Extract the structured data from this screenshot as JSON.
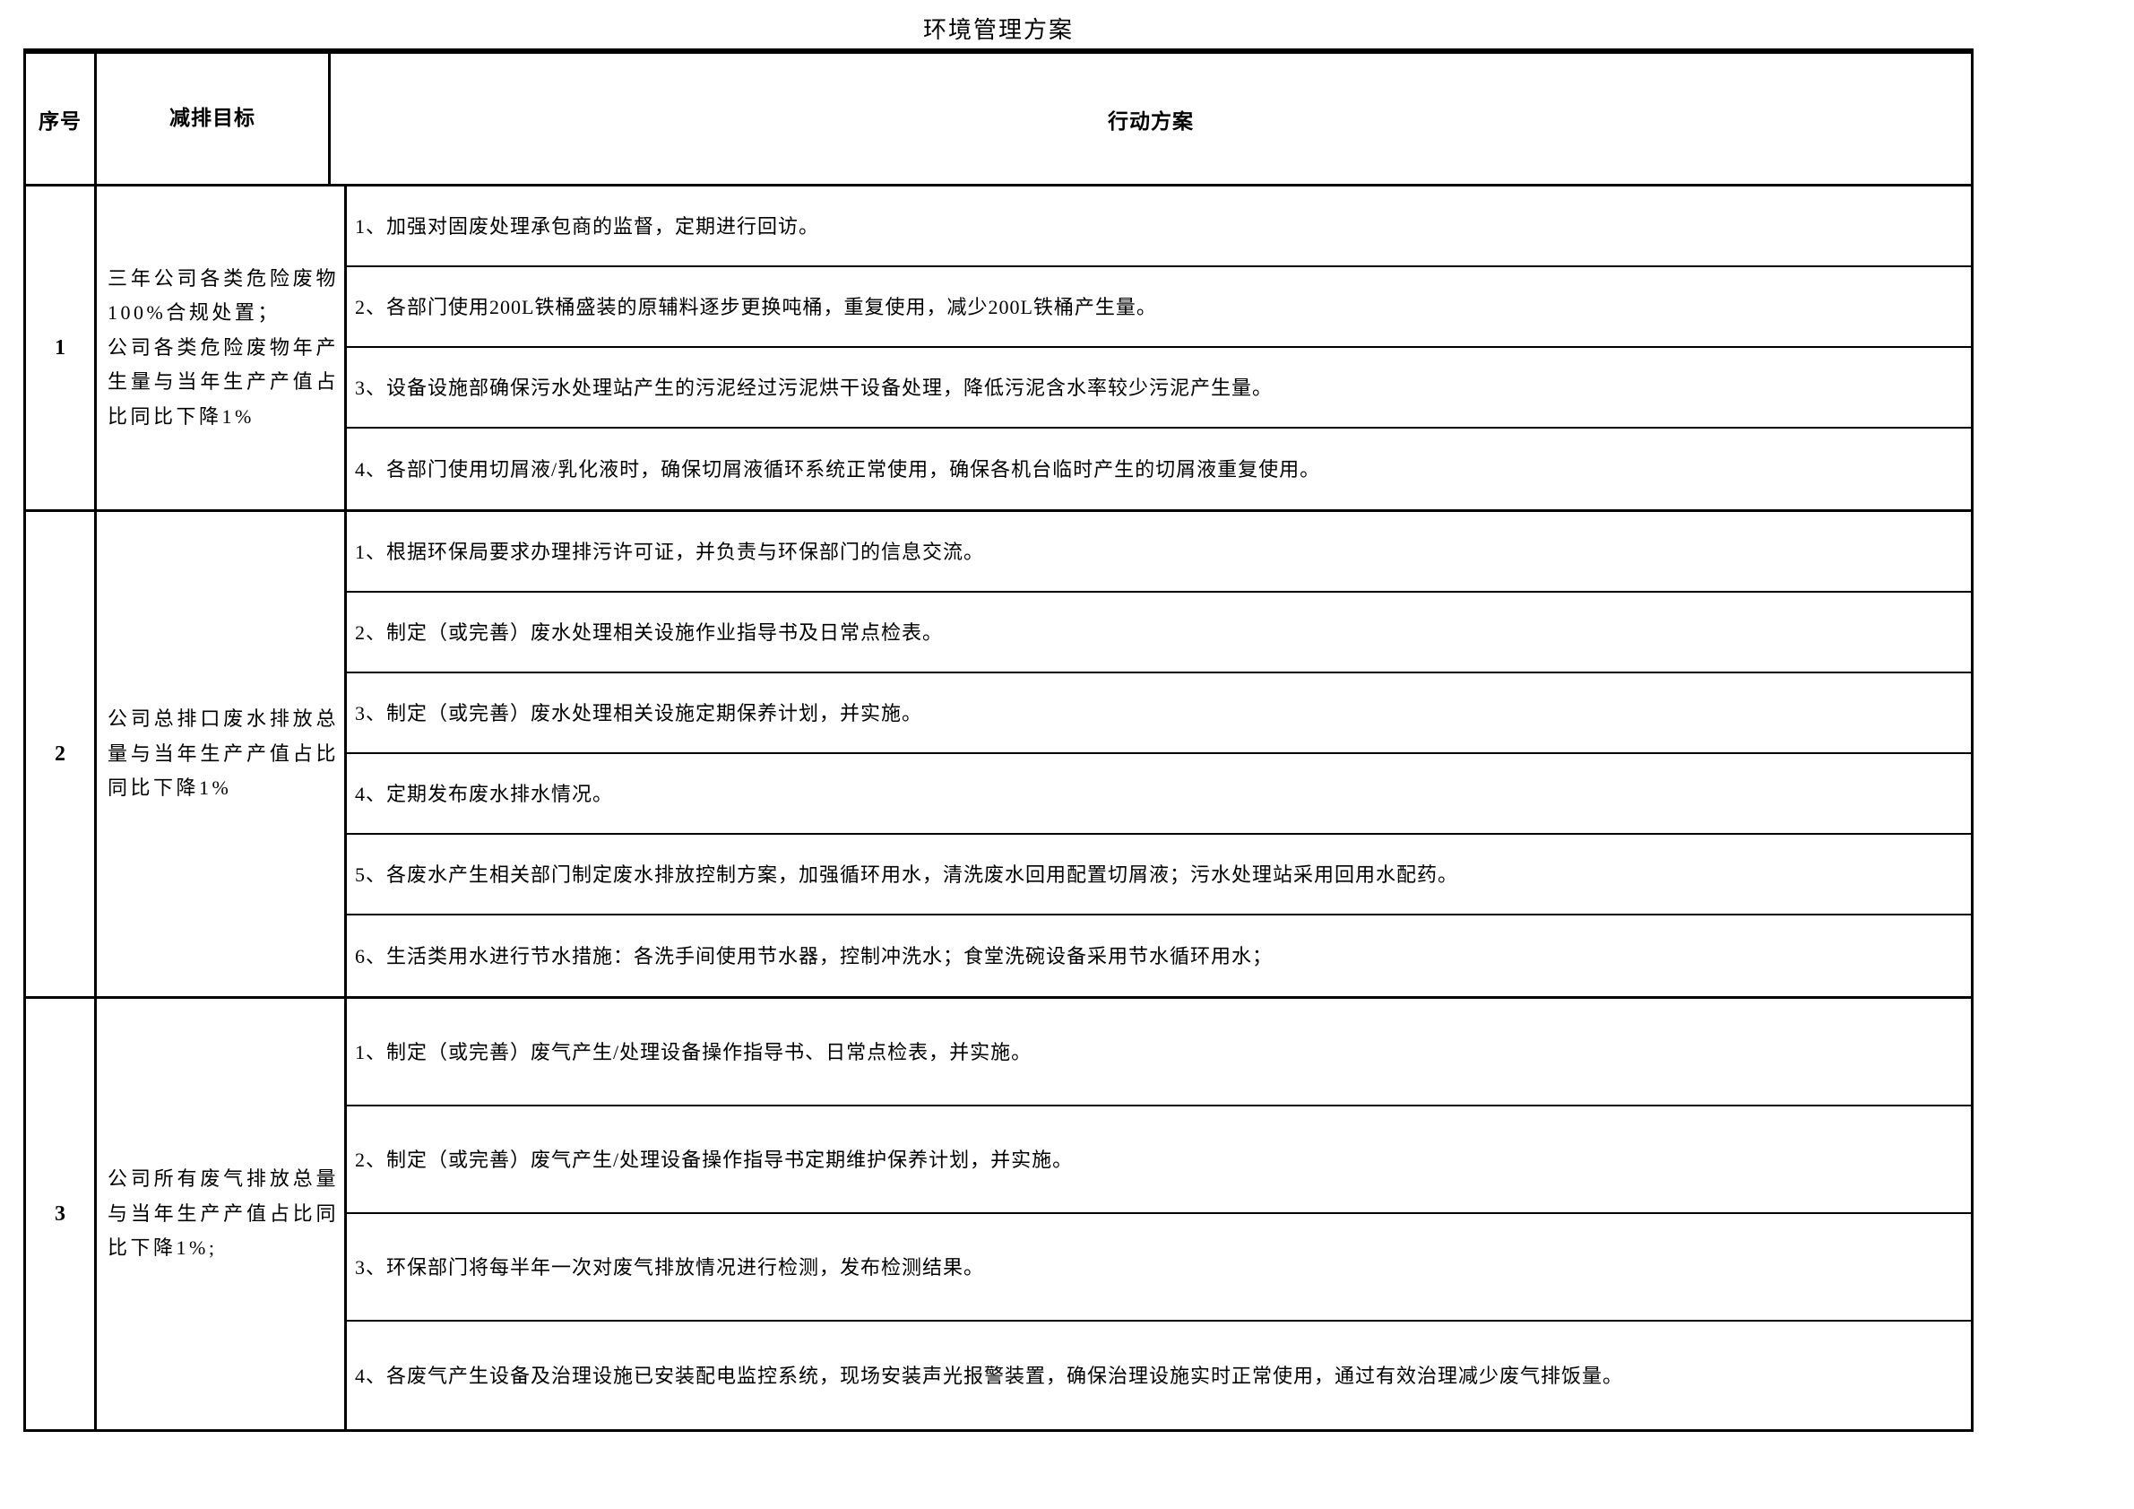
{
  "title": "环境管理方案",
  "table": {
    "headers": {
      "index": "序号",
      "target": "减排目标",
      "action": "行动方案"
    },
    "rows": [
      {
        "index": "1",
        "target": "三年公司各类危险废物100%合规处置；\n公司各类危险废物年产生量与当年生产产值占比同比下降1%",
        "actions": [
          "1、加强对固废处理承包商的监督，定期进行回访。",
          "2、各部门使用200L铁桶盛装的原辅料逐步更换吨桶，重复使用，减少200L铁桶产生量。",
          "3、设备设施部确保污水处理站产生的污泥经过污泥烘干设备处理，降低污泥含水率较少污泥产生量。",
          "4、各部门使用切屑液/乳化液时，确保切屑液循环系统正常使用，确保各机台临时产生的切屑液重复使用。"
        ]
      },
      {
        "index": "2",
        "target": "公司总排口废水排放总量与当年生产产值占比同比下降1%",
        "actions": [
          "1、根据环保局要求办理排污许可证，并负责与环保部门的信息交流。",
          "2、制定（或完善）废水处理相关设施作业指导书及日常点检表。",
          "3、制定（或完善）废水处理相关设施定期保养计划，并实施。",
          "4、定期发布废水排水情况。",
          "5、各废水产生相关部门制定废水排放控制方案，加强循环用水，清洗废水回用配置切屑液；污水处理站采用回用水配药。",
          "6、生活类用水进行节水措施：各洗手间使用节水器，控制冲洗水；食堂洗碗设备采用节水循环用水；"
        ]
      },
      {
        "index": "3",
        "target": "公司所有废气排放总量与当年生产产值占比同比下降1%;",
        "actions": [
          "1、制定（或完善）废气产生/处理设备操作指导书、日常点检表，并实施。",
          "2、制定（或完善）废气产生/处理设备操作指导书定期维护保养计划，并实施。",
          "3、环保部门将每半年一次对废气排放情况进行检测，发布检测结果。",
          "4、各废气产生设备及治理设施已安装配电监控系统，现场安装声光报警装置，确保治理设施实时正常使用，通过有效治理减少废气排饭量。"
        ]
      }
    ]
  }
}
